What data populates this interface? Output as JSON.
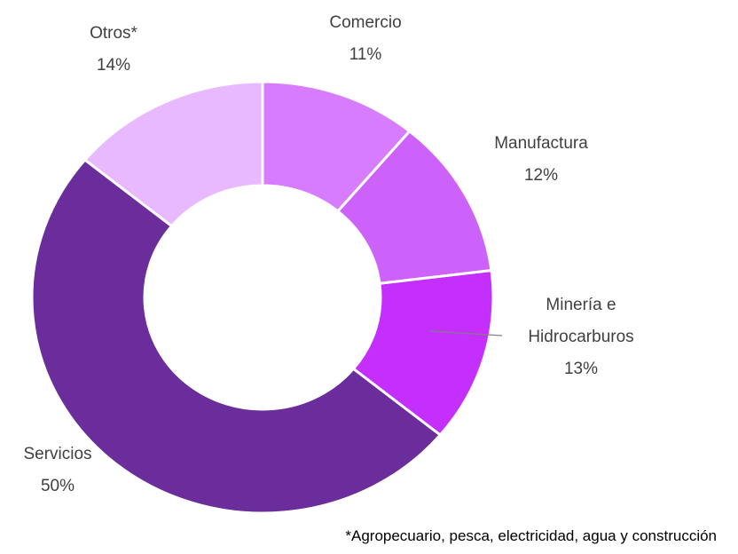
{
  "chart_data": {
    "type": "donut",
    "categories": [
      "Comercio",
      "Manufactura",
      "Minería e Hidrocarburos",
      "Servicios",
      "Otros*"
    ],
    "values": [
      11,
      12,
      13,
      50,
      14
    ],
    "value_labels": [
      "11%",
      "12%",
      "13%",
      "50%",
      "14%"
    ],
    "colors": [
      "#d87cff",
      "#cd62fb",
      "#c52ffd",
      "#6a2d9b",
      "#e9b9ff"
    ],
    "footnote": "*Agropecuario, pesca, electricidad, agua y construcción"
  }
}
